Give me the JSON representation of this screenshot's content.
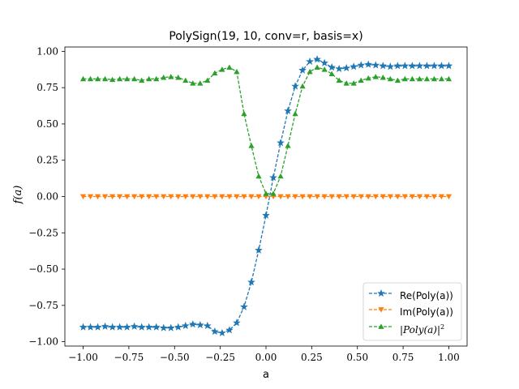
{
  "chart_data": {
    "type": "line",
    "title": "PolySign(19, 10, conv=r, basis=x)",
    "xlabel": "a",
    "ylabel": "f(a)",
    "xlim": [
      -1.1,
      1.1
    ],
    "ylim": [
      -1.03,
      1.03
    ],
    "xticks": [
      -1.0,
      -0.75,
      -0.5,
      -0.25,
      0.0,
      0.25,
      0.5,
      0.75,
      1.0
    ],
    "xtick_labels": [
      "−1.00",
      "−0.75",
      "−0.50",
      "−0.25",
      "0.00",
      "0.25",
      "0.50",
      "0.75",
      "1.00"
    ],
    "yticks": [
      -1.0,
      -0.75,
      -0.5,
      -0.25,
      0.0,
      0.25,
      0.5,
      0.75,
      1.0
    ],
    "ytick_labels": [
      "−1.00",
      "−0.75",
      "−0.50",
      "−0.25",
      "0.00",
      "0.25",
      "0.50",
      "0.75",
      "1.00"
    ],
    "grid": false,
    "legend_position": "lower-right",
    "x": [
      -1.0,
      -0.96,
      -0.92,
      -0.88,
      -0.84,
      -0.8,
      -0.76,
      -0.72,
      -0.68,
      -0.64,
      -0.6,
      -0.56,
      -0.52,
      -0.48,
      -0.44,
      -0.4,
      -0.36,
      -0.32,
      -0.28,
      -0.24,
      -0.2,
      -0.16,
      -0.12,
      -0.08,
      -0.04,
      0.0,
      0.04,
      0.08,
      0.12,
      0.16,
      0.2,
      0.24,
      0.28,
      0.32,
      0.36,
      0.4,
      0.44,
      0.48,
      0.52,
      0.56,
      0.6,
      0.64,
      0.68,
      0.72,
      0.76,
      0.8,
      0.84,
      0.88,
      0.92,
      0.96,
      1.0
    ],
    "series": [
      {
        "name": "Re(Poly(a))",
        "color": "#1f77b4",
        "marker": "star",
        "linestyle": "dashed",
        "values": [
          -0.9,
          -0.9,
          -0.9,
          -0.895,
          -0.9,
          -0.9,
          -0.9,
          -0.895,
          -0.9,
          -0.9,
          -0.9,
          -0.905,
          -0.905,
          -0.9,
          -0.89,
          -0.88,
          -0.885,
          -0.89,
          -0.93,
          -0.94,
          -0.92,
          -0.87,
          -0.76,
          -0.59,
          -0.37,
          -0.13,
          0.13,
          0.37,
          0.59,
          0.76,
          0.87,
          0.93,
          0.945,
          0.92,
          0.89,
          0.88,
          0.885,
          0.895,
          0.905,
          0.91,
          0.905,
          0.9,
          0.895,
          0.9,
          0.9,
          0.9,
          0.9,
          0.9,
          0.9,
          0.9,
          0.9
        ]
      },
      {
        "name": "Im(Poly(a))",
        "color": "#ff7f0e",
        "marker": "triangle-down",
        "linestyle": "dashed",
        "values": [
          0,
          0,
          0,
          0,
          0,
          0,
          0,
          0,
          0,
          0,
          0,
          0,
          0,
          0,
          0,
          0,
          0,
          0,
          0,
          0,
          0,
          0,
          0,
          0,
          0,
          0,
          0,
          0,
          0,
          0,
          0,
          0,
          0,
          0,
          0,
          0,
          0,
          0,
          0,
          0,
          0,
          0,
          0,
          0,
          0,
          0,
          0,
          0,
          0,
          0,
          0
        ]
      },
      {
        "name": "|Poly(a)|²",
        "color": "#2ca02c",
        "marker": "triangle-up",
        "linestyle": "dashed",
        "values": [
          0.81,
          0.81,
          0.81,
          0.81,
          0.805,
          0.81,
          0.81,
          0.81,
          0.8,
          0.81,
          0.81,
          0.82,
          0.825,
          0.82,
          0.8,
          0.78,
          0.78,
          0.8,
          0.85,
          0.875,
          0.89,
          0.86,
          0.57,
          0.35,
          0.14,
          0.02,
          0.02,
          0.14,
          0.35,
          0.57,
          0.76,
          0.86,
          0.89,
          0.875,
          0.845,
          0.8,
          0.78,
          0.78,
          0.8,
          0.815,
          0.825,
          0.82,
          0.81,
          0.8,
          0.81,
          0.81,
          0.81,
          0.81,
          0.81,
          0.81,
          0.81
        ]
      }
    ]
  },
  "legend": {
    "items": [
      {
        "label": "Re(Poly(a))"
      },
      {
        "label": "Im(Poly(a))"
      },
      {
        "label": "|Poly(a)|"
      }
    ],
    "superscript": "2"
  }
}
